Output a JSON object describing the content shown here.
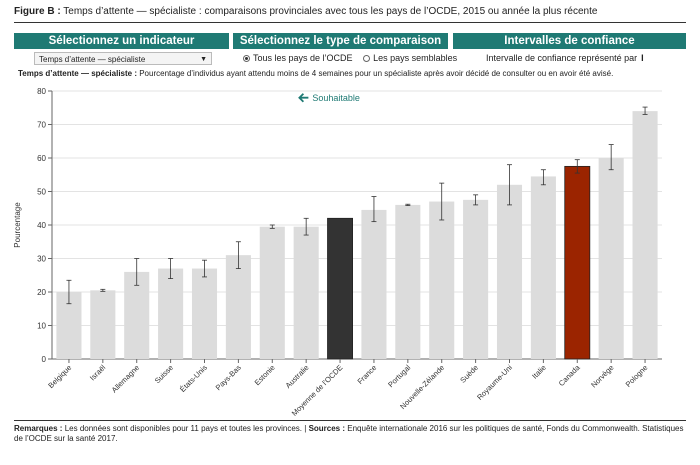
{
  "figure": {
    "label": "Figure B :",
    "title": "Temps d’attente — spécialiste : comparaisons provinciales avec tous les pays de l’OCDE, 2015 ou année la plus récente"
  },
  "controls": {
    "indicator_header": "Sélectionnez un indicateur",
    "comparison_header": "Sélectionnez le type de comparaison",
    "ci_header": "Intervalles de confiance",
    "indicator_value": "Temps d’attente — spécialiste",
    "radio_all": "Tous les pays de l’OCDE",
    "radio_similar": "Les pays semblables",
    "ci_note": "Intervalle de confiance représenté par",
    "ci_glyph": "I"
  },
  "subtitle": {
    "bold": "Temps d’attente — spécialiste :",
    "text": " Pourcentage d’individus ayant attendu moins de 4 semaines pour un spécialiste après avoir décidé de consulter ou en avoir été avisé."
  },
  "colors": {
    "bar": "#dcdcdc",
    "oecd": "#333333",
    "canada": "#9b2400",
    "accent": "#1f7a74"
  },
  "chart_data": {
    "type": "bar",
    "ylabel": "Pourcentage",
    "ylim": [
      0,
      80
    ],
    "yticks": [
      0,
      10,
      20,
      30,
      40,
      50,
      60,
      70,
      80
    ],
    "grid": true,
    "annotation": "Souhaitable",
    "categories": [
      "Belgique",
      "Israël",
      "Allemagne",
      "Suisse",
      "États-Unis",
      "Pays-Bas",
      "Estonie",
      "Australie",
      "Moyenne de l’OCDE",
      "France",
      "Portugal",
      "Nouvelle-Zélande",
      "Suède",
      "Royaume-Uni",
      "Italie",
      "Canada",
      "Norvège",
      "Pologne"
    ],
    "values": [
      20,
      20.5,
      26,
      27,
      27,
      31,
      39.5,
      39.5,
      42,
      44.5,
      46,
      47,
      47.5,
      52,
      54.5,
      57.5,
      60,
      74
    ],
    "ci_low": [
      16.5,
      20.2,
      22,
      24,
      24.5,
      27,
      39,
      37,
      null,
      41,
      45.8,
      41.5,
      46,
      46,
      52,
      55.5,
      56.5,
      73
    ],
    "ci_high": [
      23.5,
      20.8,
      30,
      30,
      29.5,
      35,
      40,
      42,
      null,
      48.5,
      46.2,
      52.5,
      49,
      58,
      56.5,
      59.5,
      64,
      75.2
    ],
    "highlight": {
      "Moyenne de l’OCDE": "oecd",
      "Canada": "canada"
    }
  },
  "footer": {
    "remarks_label": "Remarques :",
    "remarks": " Les données sont disponibles pour 11 pays et toutes les provinces. | ",
    "sources_label": "Sources :",
    "sources": " Enquête internationale 2016 sur les politiques de santé, Fonds du Commonwealth. Statistiques de l’OCDE sur la santé 2017."
  }
}
